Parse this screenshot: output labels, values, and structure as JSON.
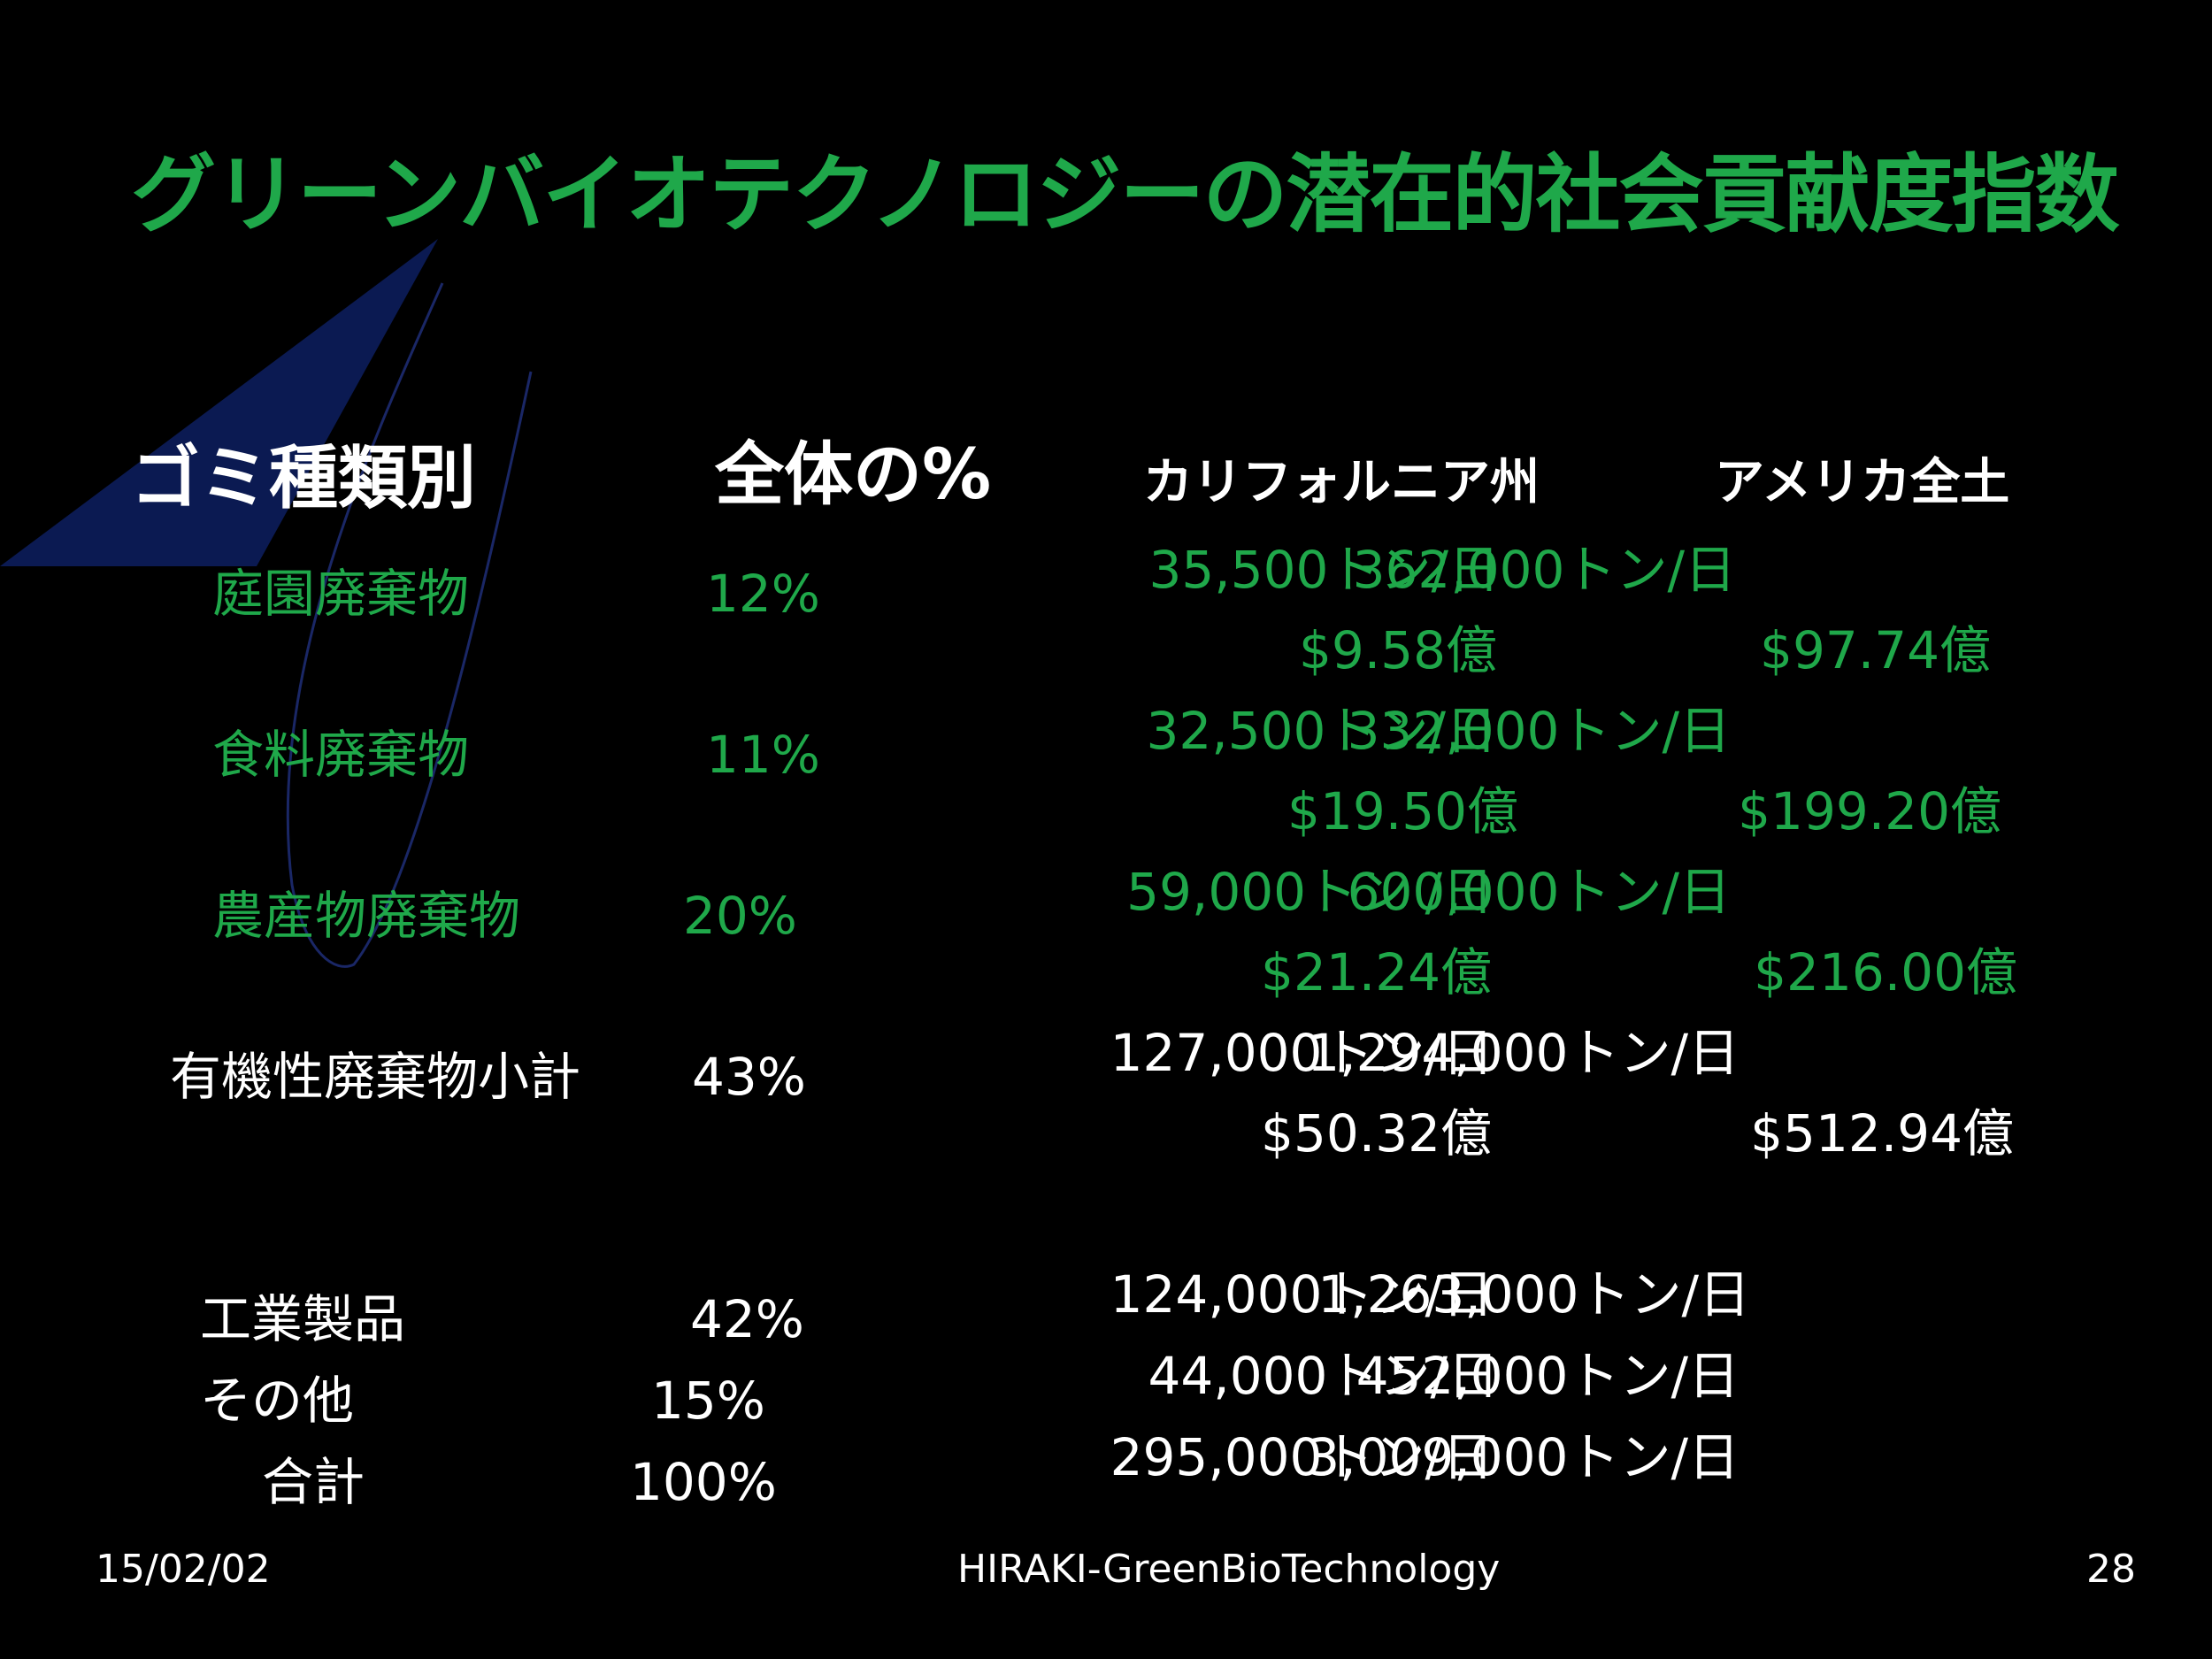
{
  "slide": {
    "title": "グリーンバイオテクノロジーの潜在的社会貢献度指数",
    "colors": {
      "background": "#000000",
      "accent_green": "#1fa84a",
      "text_white": "#ffffff",
      "deco_navy": "#0b1a52"
    },
    "headers": {
      "category": "ゴミ種類別",
      "percent": "全体の%",
      "california": "カリフォルニア州",
      "usa": "アメリカ全土"
    },
    "rows": [
      {
        "category": "庭園廃棄物",
        "percent": "12%",
        "ca_tons": "35,500トン/日",
        "ca_value": "$9.58億",
        "us_tons": "362,000トン/日",
        "us_value": "$97.74億"
      },
      {
        "category": "食料廃棄物",
        "percent": "11%",
        "ca_tons": "32,500トン/日",
        "ca_value": "$19.50億",
        "us_tons": "332,000トン/日",
        "us_value": "$199.20億"
      },
      {
        "category": "農産物廃棄物",
        "percent": "20%",
        "ca_tons": "59,000トン /日",
        "ca_value": "$21.24億",
        "us_tons": "600,000トン/日",
        "us_value": "$216.00億"
      },
      {
        "category": "有機性廃棄物小計",
        "percent": "43%",
        "ca_tons": "127,000トン/日",
        "ca_value": "$50.32億",
        "us_tons": "1,294,000トン/日",
        "us_value": "$512.94億"
      },
      {
        "category": "工業製品",
        "percent": "42%",
        "ca_tons": "124,000トン/日",
        "us_tons": "1,263,000トン/日"
      },
      {
        "category": "その他",
        "percent": "15%",
        "ca_tons": "44,000トン/日",
        "us_tons": "452,000トン/日"
      },
      {
        "category": "合計",
        "percent": "100%",
        "ca_tons": "295,000トン/日",
        "us_tons": "3,009,000トン/日"
      }
    ],
    "footer": {
      "date": "15/02/02",
      "center": "HIRAKI-GreenBioTechnology",
      "page": "28"
    }
  }
}
